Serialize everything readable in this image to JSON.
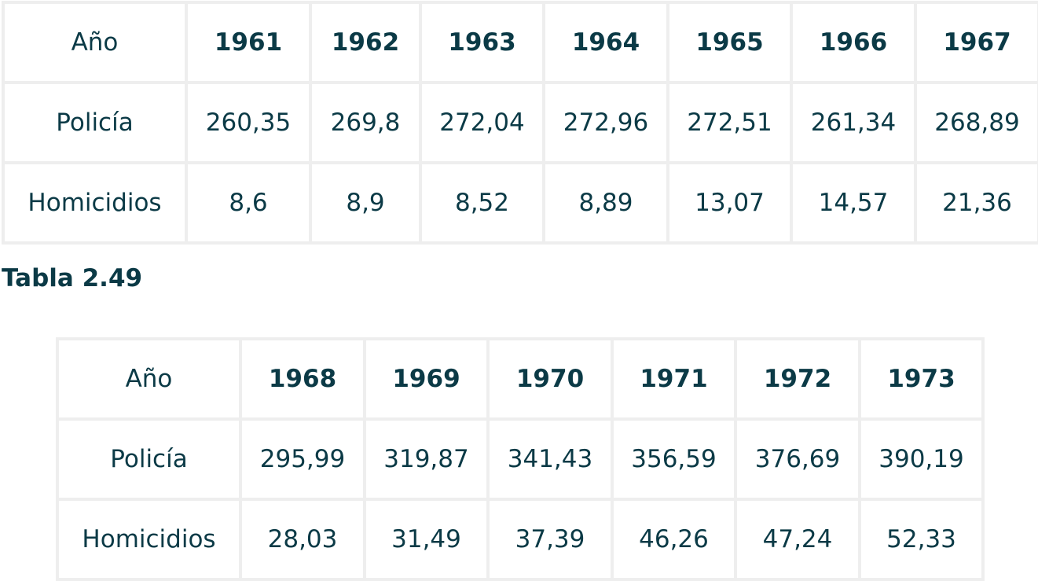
{
  "table1": {
    "header_label": "Año",
    "years": [
      "1961",
      "1962",
      "1963",
      "1964",
      "1965",
      "1966",
      "1967"
    ],
    "rows": [
      {
        "label": "Policía",
        "values": [
          "260,35",
          "269,8",
          "272,04",
          "272,96",
          "272,51",
          "261,34",
          "268,89"
        ]
      },
      {
        "label": "Homicidios",
        "values": [
          "8,6",
          "8,9",
          "8,52",
          "8,89",
          "13,07",
          "14,57",
          "21,36"
        ]
      }
    ]
  },
  "caption": "Tabla 2.49",
  "table2": {
    "header_label": "Año",
    "years": [
      "1968",
      "1969",
      "1970",
      "1971",
      "1972",
      "1973"
    ],
    "rows": [
      {
        "label": "Policía",
        "values": [
          "295,99",
          "319,87",
          "341,43",
          "356,59",
          "376,69",
          "390,19"
        ]
      },
      {
        "label": "Homicidios",
        "values": [
          "28,03",
          "31,49",
          "37,39",
          "46,26",
          "47,24",
          "52,33"
        ]
      }
    ]
  }
}
